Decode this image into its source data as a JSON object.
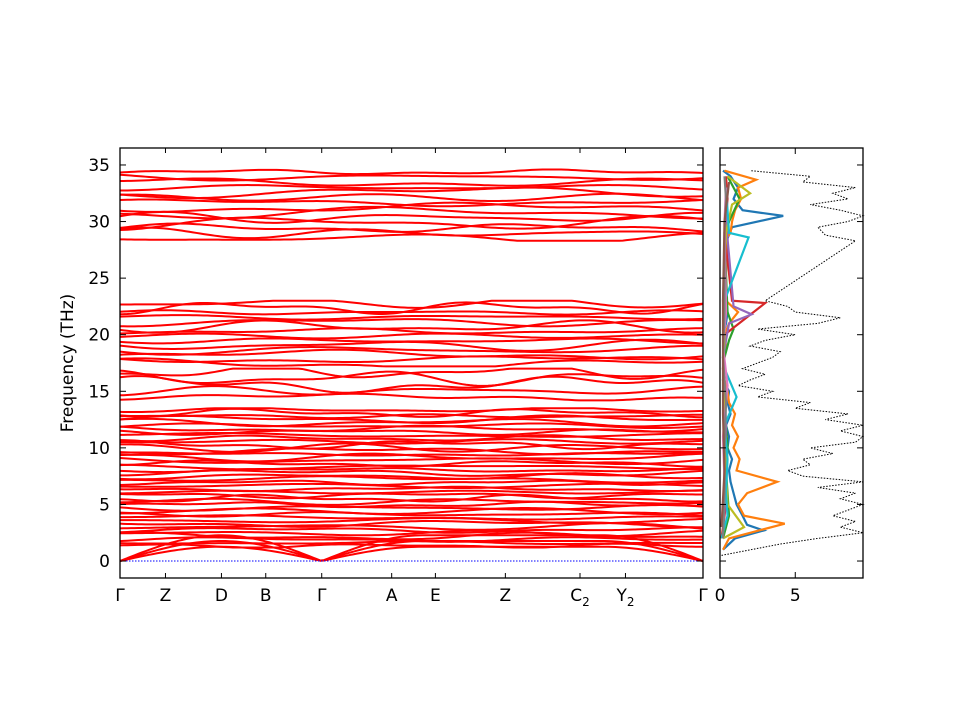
{
  "chart_data": [
    {
      "type": "line",
      "subtype": "phonon-band-structure",
      "title": "",
      "ylabel": "Frequency (THz)",
      "xlabel": "",
      "ylim": [
        -1.5,
        36.5
      ],
      "yticks": [
        0,
        5,
        10,
        15,
        20,
        25,
        30,
        35
      ],
      "grid": false,
      "legend": "none",
      "band_color": "#ff0000",
      "zero_line_color": "#0000ff",
      "high_symmetry_points": [
        {
          "label": "Γ",
          "sub": "",
          "x": 0.0
        },
        {
          "label": "Z",
          "sub": "",
          "x": 0.078
        },
        {
          "label": "D",
          "sub": "",
          "x": 0.174
        },
        {
          "label": "B",
          "sub": "",
          "x": 0.25
        },
        {
          "label": "Γ",
          "sub": "",
          "x": 0.346
        },
        {
          "label": "A",
          "sub": "",
          "x": 0.466
        },
        {
          "label": "E",
          "sub": "",
          "x": 0.541
        },
        {
          "label": "Z",
          "sub": "",
          "x": 0.661
        },
        {
          "label": "C",
          "sub": "2",
          "x": 0.789
        },
        {
          "label": "Y",
          "sub": "2",
          "x": 0.867
        },
        {
          "label": "Γ",
          "sub": "",
          "x": 1.0
        }
      ],
      "band_groups": [
        {
          "range": [
            0.0,
            2.3
          ],
          "count": 3,
          "note": "acoustic branches from 0 at Γ"
        },
        {
          "range": [
            1.2,
            13.5
          ],
          "count": 44
        },
        {
          "range": [
            14.2,
            17.0
          ],
          "count": 5
        },
        {
          "range": [
            17.2,
            23.0
          ],
          "count": 14
        },
        {
          "range": [
            28.3,
            34.6
          ],
          "count": 14
        }
      ],
      "gap_THz": [
        23.0,
        28.3
      ]
    },
    {
      "type": "line",
      "subtype": "phonon-dos",
      "title": "",
      "xlim": [
        0,
        9.5
      ],
      "xticks": [
        0,
        5
      ],
      "ylim": [
        -1.5,
        36.5
      ],
      "total_dos_style": "black-dotted",
      "total_dos": {
        "freq": [
          0.5,
          1.5,
          2.0,
          2.5,
          3.0,
          3.5,
          4.0,
          4.5,
          5.0,
          5.5,
          6.0,
          6.5,
          7.0,
          7.5,
          8.0,
          8.5,
          9.0,
          9.5,
          10.0,
          10.5,
          11.0,
          11.5,
          12.0,
          12.5,
          13.0,
          13.5,
          14.0,
          14.5,
          15.0,
          15.5,
          16.0,
          16.5,
          17.0,
          17.5,
          18.0,
          18.5,
          19.0,
          19.5,
          20.0,
          20.5,
          21.0,
          21.5,
          22.0,
          22.5,
          23.0,
          28.3,
          28.8,
          29.5,
          30.0,
          30.5,
          31.0,
          31.5,
          32.0,
          32.5,
          33.0,
          33.5,
          34.0,
          34.5
        ],
        "dos": [
          0.1,
          4.0,
          6.5,
          9.5,
          8.0,
          9.0,
          7.5,
          8.5,
          9.5,
          8.0,
          9.0,
          6.5,
          9.5,
          5.5,
          4.5,
          6.0,
          5.5,
          7.5,
          6.0,
          9.0,
          9.5,
          8.0,
          9.5,
          7.0,
          8.5,
          5.0,
          6.0,
          2.5,
          3.5,
          1.2,
          2.0,
          3.0,
          1.5,
          2.5,
          3.5,
          4.0,
          2.0,
          3.0,
          5.0,
          2.5,
          6.5,
          8.0,
          5.0,
          4.5,
          3.0,
          9.0,
          7.0,
          6.5,
          8.5,
          9.5,
          8.0,
          6.0,
          8.5,
          7.5,
          9.0,
          5.5,
          6.0,
          2.0
        ]
      },
      "series": [
        {
          "name": "",
          "color": "#1f77b4",
          "freq": [
            1.0,
            2.0,
            2.7,
            3.2,
            4.0,
            5.0,
            6.0,
            7.0,
            8.0,
            9.0,
            10.0,
            11.0,
            12.0,
            13.0,
            14.0,
            15.0,
            16.0,
            17.0,
            18.0,
            19.0,
            20.0,
            21.0,
            22.0,
            23.0,
            28.5,
            29.5,
            30.5,
            31.0,
            32.0,
            33.0,
            34.0,
            34.5
          ],
          "dos": [
            0.2,
            1.0,
            2.9,
            1.8,
            1.5,
            1.1,
            0.9,
            0.7,
            0.6,
            0.8,
            0.5,
            0.6,
            0.4,
            0.7,
            0.5,
            0.6,
            0.2,
            0.3,
            0.2,
            0.3,
            0.2,
            0.4,
            0.5,
            0.3,
            0.5,
            0.8,
            4.2,
            1.5,
            0.9,
            1.2,
            0.7,
            0.2
          ]
        },
        {
          "name": "",
          "color": "#ff7f0e",
          "freq": [
            1.0,
            2.0,
            3.3,
            4.0,
            5.0,
            6.0,
            7.0,
            8.0,
            9.0,
            10.0,
            11.0,
            12.0,
            13.0,
            14.0,
            15.0,
            16.0,
            17.0,
            18.0,
            19.0,
            20.0,
            21.0,
            22.0,
            22.5,
            23.0,
            28.5,
            29.0,
            30.0,
            31.0,
            32.0,
            33.0,
            33.7,
            34.5
          ],
          "dos": [
            0.2,
            0.6,
            4.3,
            1.6,
            1.2,
            1.8,
            3.8,
            1.1,
            1.3,
            0.9,
            1.2,
            0.8,
            1.0,
            0.6,
            0.5,
            0.3,
            0.2,
            0.3,
            0.4,
            0.3,
            0.6,
            1.2,
            0.8,
            0.4,
            0.4,
            0.7,
            0.8,
            1.0,
            1.4,
            1.2,
            2.4,
            0.3
          ]
        },
        {
          "name": "",
          "color": "#2ca02c",
          "freq": [
            2.0,
            4.0,
            6.0,
            8.0,
            10.0,
            12.0,
            14.0,
            16.0,
            18.0,
            19.5,
            20.5,
            22.0,
            28.5,
            30.0,
            32.0,
            34.0
          ],
          "dos": [
            0.2,
            0.6,
            0.5,
            0.4,
            0.5,
            0.4,
            0.3,
            0.2,
            0.3,
            0.6,
            0.9,
            0.5,
            0.3,
            0.6,
            1.3,
            0.5
          ]
        },
        {
          "name": "",
          "color": "#d62728",
          "freq": [
            2.0,
            5.0,
            8.0,
            11.0,
            14.0,
            17.0,
            20.0,
            22.8,
            23.0,
            29.0,
            32.0,
            34.0
          ],
          "dos": [
            0.1,
            0.4,
            0.3,
            0.4,
            0.3,
            0.2,
            0.3,
            3.0,
            0.8,
            0.3,
            0.5,
            0.4
          ]
        },
        {
          "name": "",
          "color": "#9467bd",
          "freq": [
            3.0,
            6.0,
            9.0,
            12.0,
            15.0,
            18.0,
            21.0,
            21.8,
            22.5,
            30.0,
            33.0
          ],
          "dos": [
            0.2,
            0.4,
            0.3,
            0.4,
            0.3,
            0.2,
            0.6,
            2.1,
            0.9,
            0.4,
            0.5
          ]
        },
        {
          "name": "",
          "color": "#bcbd22",
          "freq": [
            2.0,
            3.0,
            5.0,
            8.0,
            11.0,
            14.0,
            17.0,
            20.0,
            23.0,
            29.0,
            31.5,
            32.5,
            34.0
          ],
          "dos": [
            0.2,
            1.6,
            0.5,
            0.4,
            0.3,
            0.3,
            0.2,
            0.3,
            0.2,
            0.4,
            0.8,
            2.0,
            0.5
          ]
        },
        {
          "name": "",
          "color": "#17becf",
          "freq": [
            2.0,
            4.0,
            6.0,
            9.0,
            12.0,
            14.5,
            17.0,
            20.0,
            23.0,
            28.6,
            29.0,
            31.0,
            33.0
          ],
          "dos": [
            0.1,
            0.5,
            0.4,
            0.5,
            0.3,
            1.1,
            0.3,
            0.2,
            0.3,
            1.9,
            0.6,
            0.5,
            0.4
          ]
        },
        {
          "name": "",
          "color": "#e377c2",
          "freq": [
            3.0,
            7.0,
            11.0,
            15.5,
            19.0,
            22.0,
            30.0,
            33.0
          ],
          "dos": [
            0.1,
            0.3,
            0.2,
            0.5,
            0.2,
            0.4,
            0.3,
            0.4
          ]
        },
        {
          "name": "",
          "color": "#7f7f7f",
          "freq": [
            2.0,
            6.0,
            10.0,
            14.0,
            18.0,
            22.0,
            29.0,
            32.0,
            34.0
          ],
          "dos": [
            0.2,
            0.3,
            0.3,
            0.4,
            0.2,
            0.3,
            0.3,
            0.4,
            0.3
          ]
        },
        {
          "name": "",
          "color": "#8c564b",
          "freq": [
            3.0,
            8.0,
            13.0,
            18.0,
            23.0,
            30.0,
            33.5
          ],
          "dos": [
            0.1,
            0.3,
            0.2,
            0.2,
            0.2,
            0.3,
            0.6
          ]
        }
      ]
    }
  ]
}
